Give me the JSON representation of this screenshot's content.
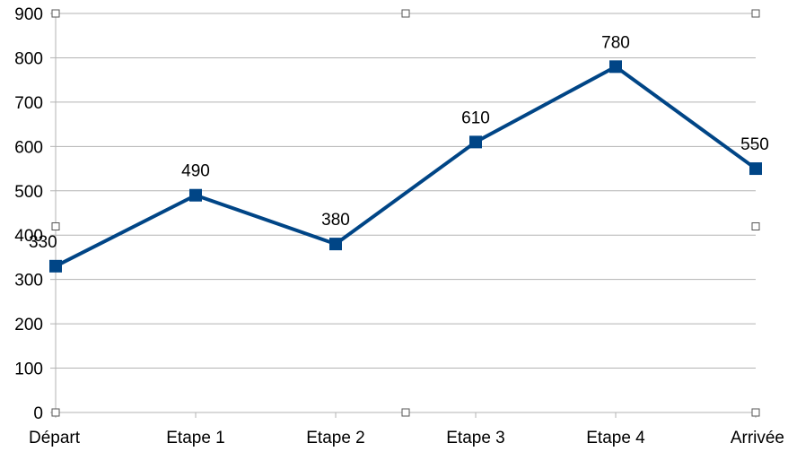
{
  "chart_data": {
    "type": "line",
    "categories": [
      "Départ",
      "Etape 1",
      "Etape 2",
      "Etape 3",
      "Etape 4",
      "Arrivée"
    ],
    "series": [
      {
        "values": [
          330,
          490,
          380,
          610,
          780,
          550
        ],
        "color": "#004586",
        "marker": "square"
      }
    ],
    "data_labels": [
      "330",
      "490",
      "380",
      "610",
      "780",
      "550"
    ],
    "y_ticks": [
      "0",
      "100",
      "200",
      "300",
      "400",
      "500",
      "600",
      "700",
      "800",
      "900"
    ],
    "ylim": [
      0,
      900
    ],
    "grid": true,
    "legend": "none",
    "selected": true,
    "colors": {
      "line": "#004586",
      "grid": "#b3b3b3",
      "axis": "#b3b3b3"
    }
  }
}
